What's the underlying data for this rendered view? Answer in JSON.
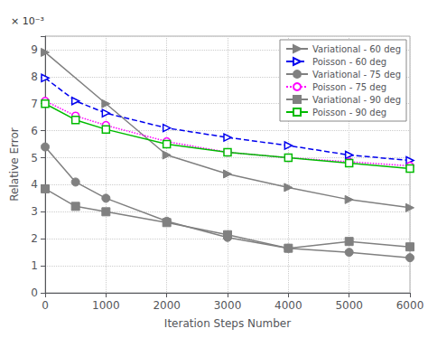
{
  "chart_data": {
    "type": "line",
    "xlabel": "Iteration Steps Number",
    "ylabel": "Relative Error",
    "annotation": "× 10⁻³",
    "xlim": [
      0,
      6000
    ],
    "ylim": [
      0,
      0.0095
    ],
    "xticks": [
      0,
      1000,
      2000,
      3000,
      4000,
      5000,
      6000
    ],
    "yticks": [
      0,
      {
        "value": 0.001,
        "label": "1"
      },
      {
        "value": 0.002,
        "label": "2"
      },
      {
        "value": 0.003,
        "label": "3"
      },
      {
        "value": 0.004,
        "label": "4"
      },
      {
        "value": 0.005,
        "label": "5"
      },
      {
        "value": 0.006,
        "label": "6"
      },
      {
        "value": 0.007,
        "label": "7"
      },
      {
        "value": 0.008,
        "label": "8"
      },
      {
        "value": 0.009,
        "label": "9"
      }
    ],
    "grid": true,
    "legend": "upper right",
    "series": [
      {
        "name": "Variational - 60 deg",
        "color": "#808080",
        "marker": "triangle-right",
        "line_style": "solid",
        "x": [
          0,
          1000,
          2000,
          3000,
          4000,
          5000,
          6000
        ],
        "values": [
          0.0089,
          0.007,
          0.0051,
          0.0044,
          0.0039,
          0.00345,
          0.00315
        ]
      },
      {
        "name": "Poisson - 60 deg",
        "color": "#0000EE",
        "marker": "triangle-right-open",
        "line_style": "dashed",
        "x": [
          0,
          500,
          1000,
          2000,
          3000,
          4000,
          5000,
          6000
        ],
        "values": [
          0.00795,
          0.0071,
          0.00665,
          0.0061,
          0.00575,
          0.00545,
          0.0051,
          0.0049
        ]
      },
      {
        "name": "Variational - 75 deg",
        "color": "#808080",
        "marker": "circle",
        "line_style": "solid",
        "x": [
          0,
          500,
          1000,
          2000,
          3000,
          4000,
          5000,
          6000
        ],
        "values": [
          0.0054,
          0.0041,
          0.0035,
          0.00265,
          0.00205,
          0.00165,
          0.0015,
          0.0013
        ]
      },
      {
        "name": "Poisson - 75 deg",
        "color": "#FF00FF",
        "marker": "circle-open",
        "line_style": "dotted",
        "x": [
          0,
          500,
          1000,
          2000,
          3000,
          4000,
          5000,
          6000
        ],
        "values": [
          0.0071,
          0.00655,
          0.0062,
          0.0056,
          0.0052,
          0.005,
          0.00485,
          0.0047
        ]
      },
      {
        "name": "Variational - 90 deg",
        "color": "#808080",
        "marker": "square",
        "line_style": "solid",
        "x": [
          0,
          500,
          1000,
          2000,
          3000,
          4000,
          5000,
          6000
        ],
        "values": [
          0.00385,
          0.0032,
          0.003,
          0.0026,
          0.00215,
          0.00165,
          0.0019,
          0.0017
        ]
      },
      {
        "name": "Poisson - 90 deg",
        "color": "#00BB00",
        "marker": "square-open",
        "line_style": "solid",
        "x": [
          0,
          500,
          1000,
          2000,
          3000,
          4000,
          5000,
          6000
        ],
        "values": [
          0.007,
          0.0064,
          0.00605,
          0.0055,
          0.0052,
          0.005,
          0.0048,
          0.0046
        ]
      }
    ]
  }
}
